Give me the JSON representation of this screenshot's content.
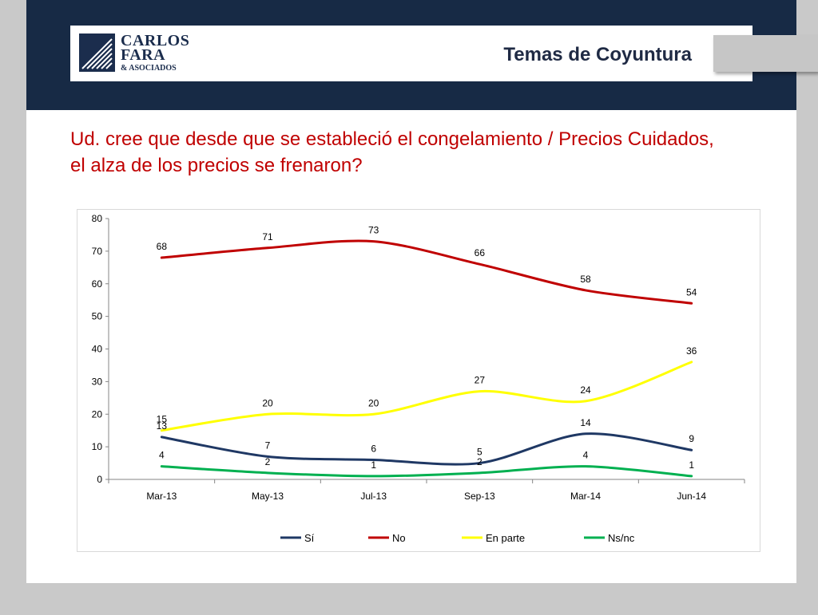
{
  "header": {
    "logo_line1": "CARLOS",
    "logo_line2": "FARA",
    "logo_line3": "& ASOCIADOS",
    "title": "Temas de Coyuntura"
  },
  "question": "Ud. cree que desde que se estableció el congelamiento / Precios Cuidados, el alza de los precios se frenaron?",
  "chart_data": {
    "type": "line",
    "categories": [
      "Mar-13",
      "May-13",
      "Jul-13",
      "Sep-13",
      "Mar-14",
      "Jun-14"
    ],
    "series": [
      {
        "name": "Sí",
        "color": "#1f3864",
        "values": [
          13,
          7,
          6,
          5,
          14,
          9
        ]
      },
      {
        "name": "No",
        "color": "#c00000",
        "values": [
          68,
          71,
          73,
          66,
          58,
          54
        ]
      },
      {
        "name": "En parte",
        "color": "#ffff00",
        "values": [
          15,
          20,
          20,
          27,
          24,
          36
        ]
      },
      {
        "name": "Ns/nc",
        "color": "#00b050",
        "values": [
          4,
          2,
          1,
          2,
          4,
          1
        ]
      }
    ],
    "ylim": [
      0,
      80
    ],
    "yticks": [
      0,
      10,
      20,
      30,
      40,
      50,
      60,
      70,
      80
    ],
    "grid": false,
    "legend_position": "bottom"
  }
}
